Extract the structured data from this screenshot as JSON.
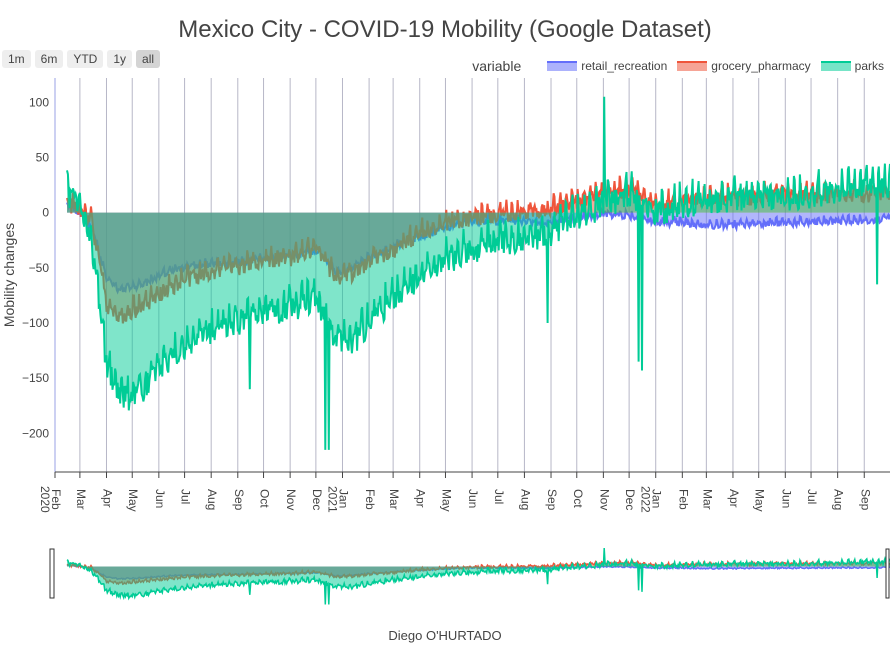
{
  "title": "Mexico City - COVID-19 Mobility (Google Dataset)",
  "footer": "Diego O'HURTADO",
  "range_buttons": [
    {
      "label": "1m",
      "active": false
    },
    {
      "label": "6m",
      "active": false
    },
    {
      "label": "YTD",
      "active": false
    },
    {
      "label": "1y",
      "active": false
    },
    {
      "label": "all",
      "active": true
    }
  ],
  "legend": {
    "title": "variable",
    "items": [
      {
        "name": "retail_recreation",
        "color": "#636efa"
      },
      {
        "name": "grocery_pharmacy",
        "color": "#ef553b"
      },
      {
        "name": "parks",
        "color": "#00cc96"
      }
    ]
  },
  "chart_data": {
    "type": "area",
    "ylabel": "Mobility changes",
    "xlabel": "",
    "xlim": [
      "2020-02-01",
      "2022-10-01"
    ],
    "ylim": [
      -235,
      122
    ],
    "yticks": [
      100,
      50,
      0,
      -50,
      -100,
      -150,
      -200
    ],
    "ytick_labels": [
      "100",
      "50",
      "0",
      "−50",
      "−100",
      "−150",
      "−200"
    ],
    "xticks": [
      "2020-02-01",
      "2020-03-01",
      "2020-04-01",
      "2020-05-01",
      "2020-06-01",
      "2020-07-01",
      "2020-08-01",
      "2020-09-01",
      "2020-10-01",
      "2020-11-01",
      "2020-12-01",
      "2021-01-01",
      "2021-02-01",
      "2021-03-01",
      "2021-04-01",
      "2021-05-01",
      "2021-06-01",
      "2021-07-01",
      "2021-08-01",
      "2021-09-01",
      "2021-10-01",
      "2021-11-01",
      "2021-12-01",
      "2022-01-01",
      "2022-02-01",
      "2022-03-01",
      "2022-04-01",
      "2022-05-01",
      "2022-06-01",
      "2022-07-01",
      "2022-08-01",
      "2022-09-01"
    ],
    "xtick_labels": [
      "Feb",
      "Mar",
      "Apr",
      "May",
      "Jun",
      "Jul",
      "Aug",
      "Sep",
      "Oct",
      "Nov",
      "Dec",
      "Jan",
      "Feb",
      "Mar",
      "Apr",
      "May",
      "Jun",
      "Jul",
      "Aug",
      "Sep",
      "Oct",
      "Nov",
      "Dec",
      "Jan",
      "Feb",
      "Mar",
      "Apr",
      "May",
      "Jun",
      "Jul",
      "Aug",
      "Sep"
    ],
    "year_labels": [
      {
        "date": "2020-02-01",
        "label": "2020"
      },
      {
        "date": "2021-01-01",
        "label": "2021"
      },
      {
        "date": "2022-01-01",
        "label": "2022"
      }
    ],
    "range_slider": true,
    "series": [
      {
        "name": "retail_recreation",
        "color": "#636efa",
        "x": [
          "2020-02-15",
          "2020-03-01",
          "2020-03-15",
          "2020-04-01",
          "2020-04-15",
          "2020-05-01",
          "2020-05-15",
          "2020-06-01",
          "2020-07-01",
          "2020-08-01",
          "2020-09-01",
          "2020-10-01",
          "2020-11-01",
          "2020-12-01",
          "2020-12-25",
          "2021-01-15",
          "2021-02-01",
          "2021-03-01",
          "2021-04-01",
          "2021-05-01",
          "2021-06-01",
          "2021-07-01",
          "2021-08-01",
          "2021-09-01",
          "2021-10-01",
          "2021-11-01",
          "2021-12-01",
          "2022-01-01",
          "2022-02-01",
          "2022-03-01",
          "2022-04-01",
          "2022-05-01",
          "2022-06-01",
          "2022-07-01",
          "2022-08-01",
          "2022-09-01",
          "2022-10-01"
        ],
        "y": [
          5,
          0,
          -15,
          -60,
          -70,
          -68,
          -65,
          -58,
          -50,
          -47,
          -45,
          -42,
          -40,
          -35,
          -55,
          -50,
          -42,
          -32,
          -22,
          -15,
          -8,
          -8,
          -8,
          -10,
          -5,
          -2,
          -3,
          -10,
          -10,
          -12,
          -12,
          -10,
          -10,
          -10,
          -8,
          -8,
          -5
        ]
      },
      {
        "name": "grocery_pharmacy",
        "color": "#ef553b",
        "x": [
          "2020-02-15",
          "2020-03-01",
          "2020-03-15",
          "2020-04-01",
          "2020-04-15",
          "2020-05-01",
          "2020-05-15",
          "2020-06-01",
          "2020-07-01",
          "2020-08-01",
          "2020-09-01",
          "2020-10-01",
          "2020-11-01",
          "2020-12-01",
          "2020-12-25",
          "2021-01-15",
          "2021-02-01",
          "2021-03-01",
          "2021-04-01",
          "2021-05-01",
          "2021-06-01",
          "2021-07-01",
          "2021-08-01",
          "2021-09-01",
          "2021-10-01",
          "2021-11-01",
          "2021-12-01",
          "2022-01-01",
          "2022-02-01",
          "2022-03-01",
          "2022-04-01",
          "2022-05-01",
          "2022-06-01",
          "2022-07-01",
          "2022-08-01",
          "2022-09-01",
          "2022-10-01"
        ],
        "y": [
          8,
          2,
          -10,
          -85,
          -95,
          -90,
          -85,
          -75,
          -62,
          -55,
          -50,
          -45,
          -42,
          -35,
          -60,
          -55,
          -45,
          -35,
          -20,
          -12,
          -5,
          -3,
          0,
          2,
          10,
          15,
          20,
          5,
          10,
          12,
          12,
          14,
          15,
          14,
          15,
          15,
          18
        ]
      },
      {
        "name": "parks",
        "color": "#00cc96",
        "x": [
          "2020-02-15",
          "2020-03-01",
          "2020-03-15",
          "2020-04-01",
          "2020-04-15",
          "2020-05-01",
          "2020-05-15",
          "2020-06-01",
          "2020-07-01",
          "2020-08-01",
          "2020-09-01",
          "2020-10-01",
          "2020-11-01",
          "2020-12-01",
          "2020-12-25",
          "2021-01-15",
          "2021-02-01",
          "2021-03-01",
          "2021-04-01",
          "2021-05-01",
          "2021-06-01",
          "2021-07-01",
          "2021-08-01",
          "2021-09-01",
          "2021-10-01",
          "2021-11-01",
          "2021-12-01",
          "2022-01-01",
          "2022-02-01",
          "2022-03-01",
          "2022-04-01",
          "2022-05-01",
          "2022-06-01",
          "2022-07-01",
          "2022-08-01",
          "2022-09-01",
          "2022-10-01"
        ],
        "y": [
          15,
          5,
          -30,
          -140,
          -165,
          -170,
          -160,
          -140,
          -125,
          -110,
          -100,
          -92,
          -88,
          -80,
          -115,
          -120,
          -100,
          -80,
          -60,
          -45,
          -35,
          -28,
          -25,
          -20,
          -5,
          5,
          15,
          -2,
          5,
          10,
          10,
          12,
          12,
          15,
          18,
          20,
          25
        ]
      }
    ],
    "annotations_spikes": [
      {
        "series": "parks",
        "x": "2020-09-15",
        "y": -160
      },
      {
        "series": "parks",
        "x": "2020-12-12",
        "y": -215
      },
      {
        "series": "parks",
        "x": "2020-12-16",
        "y": -215
      },
      {
        "series": "parks",
        "x": "2021-08-28",
        "y": -100
      },
      {
        "series": "parks",
        "x": "2021-11-02",
        "y": 105
      },
      {
        "series": "parks",
        "x": "2021-12-12",
        "y": -135
      },
      {
        "series": "parks",
        "x": "2021-12-16",
        "y": -143
      },
      {
        "series": "parks",
        "x": "2022-09-16",
        "y": -65
      }
    ]
  }
}
